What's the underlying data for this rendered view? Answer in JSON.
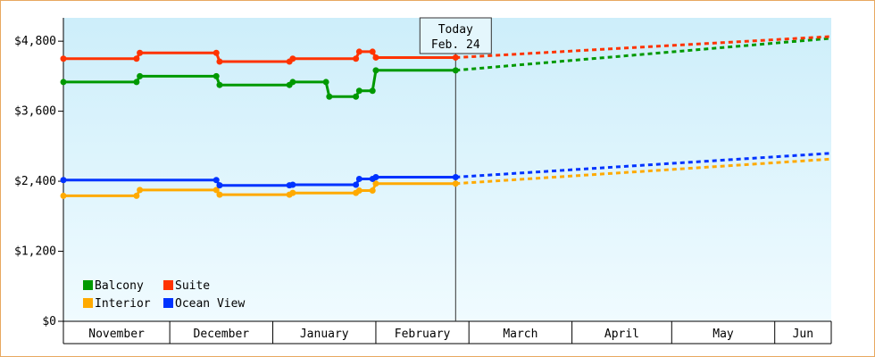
{
  "chart_data": {
    "type": "line",
    "title": "",
    "xlabel": "",
    "ylabel": "",
    "ylim": [
      0,
      5200
    ],
    "y_ticks": [
      "$0",
      "$1,200",
      "$2,400",
      "$3,600",
      "$4,800"
    ],
    "y_tick_values": [
      0,
      1200,
      2400,
      3600,
      4800
    ],
    "x_axis": {
      "start": "2024-10-29",
      "end": "2025-06-17",
      "months": [
        {
          "label": "November",
          "start": "2024-10-29",
          "end": "2024-11-30"
        },
        {
          "label": "December",
          "start": "2024-11-30",
          "end": "2024-12-31"
        },
        {
          "label": "January",
          "start": "2024-12-31",
          "end": "2025-01-31"
        },
        {
          "label": "February",
          "start": "2025-01-31",
          "end": "2025-02-28"
        },
        {
          "label": "March",
          "start": "2025-02-28",
          "end": "2025-03-31"
        },
        {
          "label": "April",
          "start": "2025-03-31",
          "end": "2025-04-30"
        },
        {
          "label": "May",
          "start": "2025-04-30",
          "end": "2025-05-31"
        },
        {
          "label": "Jun",
          "start": "2025-05-31",
          "end": "2025-06-17"
        }
      ]
    },
    "today": {
      "line1": "Today",
      "line2": "Feb. 24",
      "date": "2025-02-24"
    },
    "grid": false,
    "legend_placement": "bottom-left",
    "series": [
      {
        "name": "Balcony",
        "color": "#009900",
        "points": [
          {
            "x": "2024-10-29",
            "y": 4100
          },
          {
            "x": "2024-11-20",
            "y": 4100
          },
          {
            "x": "2024-11-21",
            "y": 4200
          },
          {
            "x": "2024-12-14",
            "y": 4200
          },
          {
            "x": "2024-12-15",
            "y": 4050
          },
          {
            "x": "2025-01-05",
            "y": 4050
          },
          {
            "x": "2025-01-06",
            "y": 4100
          },
          {
            "x": "2025-01-16",
            "y": 4100
          },
          {
            "x": "2025-01-17",
            "y": 3850
          },
          {
            "x": "2025-01-25",
            "y": 3850
          },
          {
            "x": "2025-01-26",
            "y": 3950
          },
          {
            "x": "2025-01-30",
            "y": 3950
          },
          {
            "x": "2025-01-31",
            "y": 4300
          },
          {
            "x": "2025-02-24",
            "y": 4300
          }
        ],
        "forecast": [
          {
            "x": "2025-02-24",
            "y": 4300
          },
          {
            "x": "2025-06-17",
            "y": 4850
          }
        ]
      },
      {
        "name": "Suite",
        "color": "#ff3300",
        "points": [
          {
            "x": "2024-10-29",
            "y": 4500
          },
          {
            "x": "2024-11-20",
            "y": 4500
          },
          {
            "x": "2024-11-21",
            "y": 4600
          },
          {
            "x": "2024-12-14",
            "y": 4600
          },
          {
            "x": "2024-12-15",
            "y": 4450
          },
          {
            "x": "2025-01-05",
            "y": 4450
          },
          {
            "x": "2025-01-06",
            "y": 4500
          },
          {
            "x": "2025-01-25",
            "y": 4500
          },
          {
            "x": "2025-01-26",
            "y": 4620
          },
          {
            "x": "2025-01-30",
            "y": 4620
          },
          {
            "x": "2025-01-31",
            "y": 4520
          },
          {
            "x": "2025-02-24",
            "y": 4520
          }
        ],
        "forecast": [
          {
            "x": "2025-02-24",
            "y": 4520
          },
          {
            "x": "2025-06-17",
            "y": 4880
          }
        ]
      },
      {
        "name": "Interior",
        "color": "#ffaa00",
        "points": [
          {
            "x": "2024-10-29",
            "y": 2150
          },
          {
            "x": "2024-11-20",
            "y": 2150
          },
          {
            "x": "2024-11-21",
            "y": 2250
          },
          {
            "x": "2024-12-14",
            "y": 2250
          },
          {
            "x": "2024-12-15",
            "y": 2170
          },
          {
            "x": "2025-01-05",
            "y": 2170
          },
          {
            "x": "2025-01-06",
            "y": 2200
          },
          {
            "x": "2025-01-25",
            "y": 2200
          },
          {
            "x": "2025-01-26",
            "y": 2240
          },
          {
            "x": "2025-01-30",
            "y": 2240
          },
          {
            "x": "2025-01-31",
            "y": 2360
          },
          {
            "x": "2025-02-24",
            "y": 2360
          }
        ],
        "forecast": [
          {
            "x": "2025-02-24",
            "y": 2360
          },
          {
            "x": "2025-06-17",
            "y": 2780
          }
        ]
      },
      {
        "name": "Ocean View",
        "color": "#0033ff",
        "points": [
          {
            "x": "2024-10-29",
            "y": 2420
          },
          {
            "x": "2024-12-14",
            "y": 2420
          },
          {
            "x": "2024-12-15",
            "y": 2330
          },
          {
            "x": "2025-01-05",
            "y": 2330
          },
          {
            "x": "2025-01-06",
            "y": 2340
          },
          {
            "x": "2025-01-25",
            "y": 2340
          },
          {
            "x": "2025-01-26",
            "y": 2440
          },
          {
            "x": "2025-01-30",
            "y": 2440
          },
          {
            "x": "2025-01-31",
            "y": 2470
          },
          {
            "x": "2025-02-24",
            "y": 2470
          }
        ],
        "forecast": [
          {
            "x": "2025-02-24",
            "y": 2470
          },
          {
            "x": "2025-06-17",
            "y": 2880
          }
        ]
      }
    ],
    "legend": [
      {
        "name": "Balcony",
        "color": "#009900"
      },
      {
        "name": "Suite",
        "color": "#ff3300"
      },
      {
        "name": "Interior",
        "color": "#ffaa00"
      },
      {
        "name": "Ocean View",
        "color": "#0033ff"
      }
    ]
  }
}
